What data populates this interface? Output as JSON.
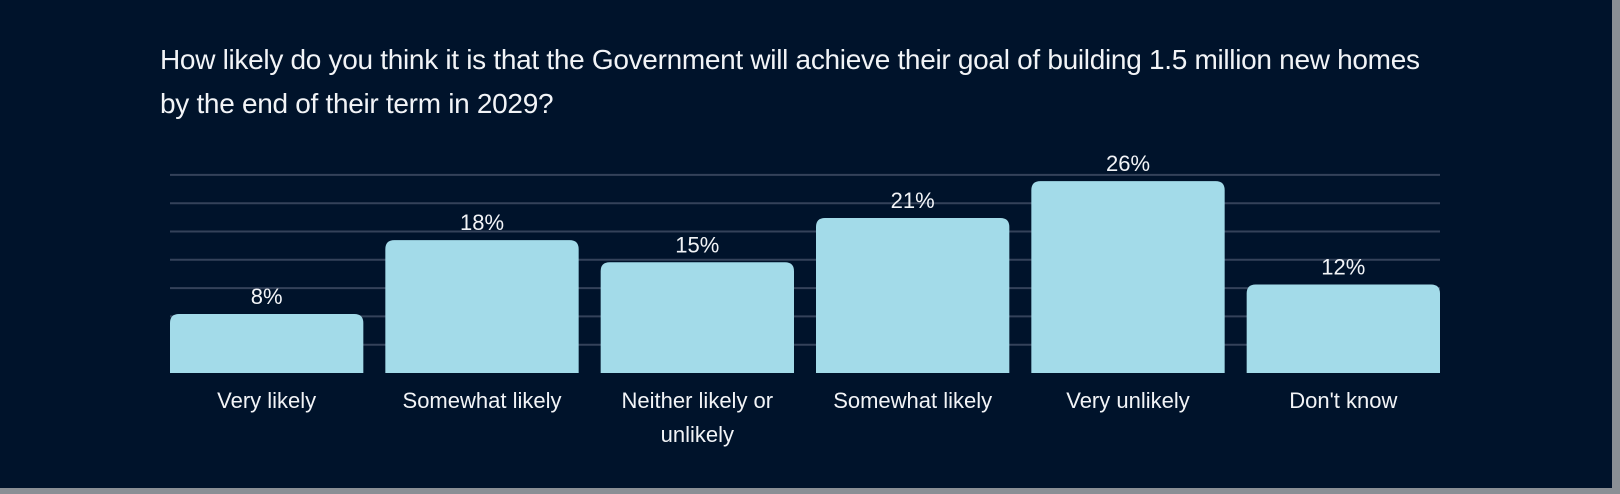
{
  "chart_data": {
    "type": "bar",
    "title": "How likely do you think it is that the Government will achieve their goal of building 1.5 million new homes by the end of their term in 2029?",
    "categories": [
      "Very likely",
      "Somewhat likely",
      "Neither likely or unlikely",
      "Somewhat likely",
      "Very unlikely",
      "Don't know"
    ],
    "category_lines": [
      [
        "Very likely"
      ],
      [
        "Somewhat likely"
      ],
      [
        "Neither likely or",
        "unlikely"
      ],
      [
        "Somewhat likely"
      ],
      [
        "Very unlikely"
      ],
      [
        "Don't know"
      ]
    ],
    "values": [
      8,
      18,
      15,
      21,
      26,
      12
    ],
    "value_labels": [
      "8%",
      "18%",
      "15%",
      "21%",
      "26%",
      "12%"
    ],
    "ylim": [
      0,
      28
    ],
    "grid": true,
    "bar_color": "#a3dbe9",
    "background_color": "#00132b",
    "grid_color": "#34425a",
    "text_color": "#f2f4f7"
  }
}
